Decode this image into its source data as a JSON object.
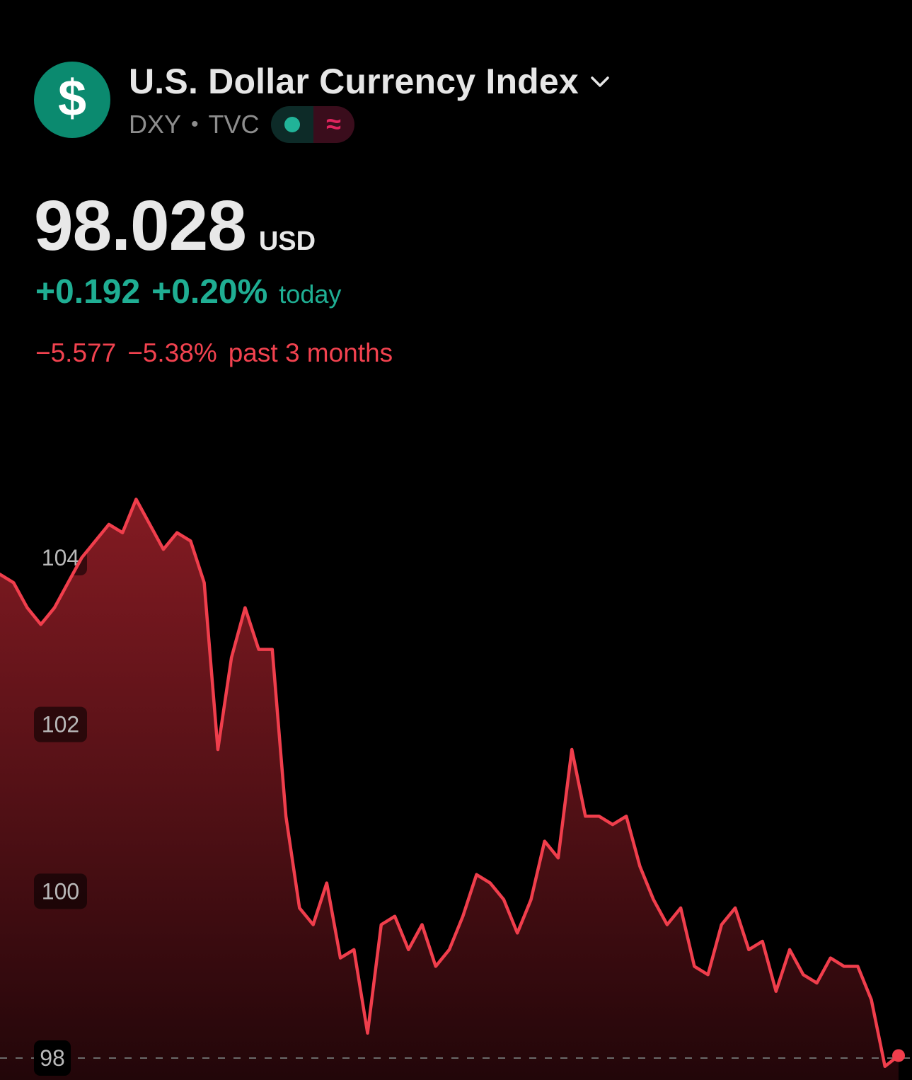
{
  "header": {
    "title": "U.S. Dollar Currency Index",
    "symbol": "DXY",
    "separator": "•",
    "exchange": "TVC",
    "logo_glyph": "$",
    "logo_color": "#0b8a6f",
    "market_status_icon": "green-dot-icon",
    "data_delay_glyph": "≈"
  },
  "quote": {
    "price": "98.028",
    "currency": "USD",
    "change_today": "+0.192",
    "change_today_pct": "+0.20%",
    "today_label": "today",
    "change_period": "−5.577",
    "change_period_pct": "−5.38%",
    "period_label": "past 3 months"
  },
  "colors": {
    "positive": "#1fae93",
    "negative": "#f2424f",
    "line": "#f03e4c"
  },
  "chart_data": {
    "type": "area",
    "title": "",
    "xlabel": "",
    "ylabel": "",
    "y_ticks": [
      98,
      100,
      102,
      104
    ],
    "y_tick_labels": [
      "98",
      "100",
      "102",
      "104"
    ],
    "ylim": [
      97.8,
      106.8
    ],
    "grid": false,
    "reference_line": 98,
    "series": [
      {
        "values": [
          103.8,
          103.7,
          103.4,
          103.2,
          103.4,
          103.7,
          104.0,
          104.2,
          104.4,
          104.3,
          104.7,
          104.4,
          104.1,
          104.3,
          104.2,
          103.7,
          101.7,
          102.8,
          103.4,
          102.9,
          102.9,
          100.9,
          99.8,
          99.6,
          100.1,
          99.2,
          99.3,
          98.3,
          99.6,
          99.7,
          99.3,
          99.6,
          99.1,
          99.3,
          99.7,
          100.2,
          100.1,
          99.9,
          99.5,
          99.9,
          100.6,
          100.4,
          101.7,
          100.9,
          100.9,
          100.8,
          100.9,
          100.3,
          99.9,
          99.6,
          99.8,
          99.1,
          99.0,
          99.6,
          99.8,
          99.3,
          99.4,
          98.8,
          99.3,
          99.0,
          98.9,
          99.2,
          99.1,
          99.1,
          98.7,
          97.9,
          98.03
        ]
      }
    ]
  }
}
